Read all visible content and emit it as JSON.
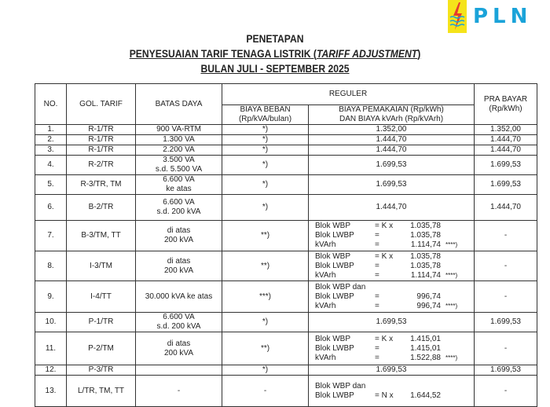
{
  "logo": {
    "text": "PLN",
    "colors": {
      "box": "#f5e31a",
      "text": "#1aa3d9",
      "bolt": "#e63b2e"
    }
  },
  "title": {
    "line1": "PENETAPAN",
    "line2_main": "PENYESUAIAN TARIF TENAGA LISTRIK (",
    "line2_italic": "TARIFF ADJUSTMENT",
    "line2_end": ")",
    "line3": "BULAN JULI - SEPTEMBER 2025"
  },
  "headers": {
    "no": "NO.",
    "gol": "GOL. TARIF",
    "batas": "BATAS DAYA",
    "reguler": "REGULER",
    "beban": "BIAYA BEBAN",
    "beban_unit": "(Rp/kVA/bulan)",
    "pemakaian": "BIAYA PEMAKAIAN (Rp/kWh)",
    "pemakaian2": "DAN BIAYA kVArh (Rp/kVArh)",
    "prabayar": "PRA BAYAR",
    "prabayar_unit": "(Rp/kWh)"
  },
  "rows": [
    {
      "no": "1.",
      "gol": "R-1/TR",
      "batas": [
        "900 VA-RTM"
      ],
      "beban": "*)",
      "pemakaian": "1.352,00",
      "pra": "1.352,00"
    },
    {
      "no": "2.",
      "gol": "R-1/TR",
      "batas": [
        "1.300 VA"
      ],
      "beban": "*)",
      "pemakaian": "1.444,70",
      "pra": "1.444,70"
    },
    {
      "no": "3.",
      "gol": "R-1/TR",
      "batas": [
        "2.200 VA"
      ],
      "beban": "*)",
      "pemakaian": "1.444,70",
      "pra": "1.444,70"
    },
    {
      "no": "4.",
      "gol": "R-2/TR",
      "batas": [
        "3.500 VA",
        "s.d. 5.500 VA"
      ],
      "beban": "*)",
      "pemakaian": "1.699,53",
      "pra": "1.699,53"
    },
    {
      "no": "5.",
      "gol": "R-3/TR, TM",
      "batas": [
        "6.600 VA",
        "ke atas"
      ],
      "beban": "*)",
      "pemakaian": "1.699,53",
      "pra": "1.699,53"
    },
    {
      "no": "6.",
      "gol": "B-2/TR",
      "batas": [
        "6.600 VA",
        "s.d. 200 kVA"
      ],
      "beban": "*)",
      "pemakaian": "1.444,70",
      "pra": "1.444,70"
    },
    {
      "no": "7.",
      "gol": "B-3/TM, TT",
      "batas": [
        "di atas",
        "200 kVA"
      ],
      "beban": "**)",
      "blok": [
        {
          "l": "Blok WBP",
          "e": "= K x",
          "v": "1.035,78",
          "n": ""
        },
        {
          "l": "Blok LWBP",
          "e": "=",
          "v": "1.035,78",
          "n": ""
        },
        {
          "l": "kVArh",
          "e": "=",
          "v": "1.114,74",
          "n": "****)"
        }
      ],
      "pra": "-"
    },
    {
      "no": "8.",
      "gol": "I-3/TM",
      "batas": [
        "di atas",
        "200 kVA"
      ],
      "beban": "**)",
      "blok": [
        {
          "l": "Blok WBP",
          "e": "= K x",
          "v": "1.035,78",
          "n": ""
        },
        {
          "l": "Blok LWBP",
          "e": "=",
          "v": "1.035,78",
          "n": ""
        },
        {
          "l": "kVArh",
          "e": "=",
          "v": "1.114,74",
          "n": "****)"
        }
      ],
      "pra": "-"
    },
    {
      "no": "9.",
      "gol": "I-4/TT",
      "batas": [
        "30.000 kVA ke atas"
      ],
      "beban": "***)",
      "blok": [
        {
          "l": "Blok WBP dan",
          "e": "",
          "v": "",
          "n": ""
        },
        {
          "l": "Blok LWBP",
          "e": "=",
          "v": "996,74",
          "n": ""
        },
        {
          "l": "kVArh",
          "e": "=",
          "v": "996,74",
          "n": "****)"
        }
      ],
      "pra": "-"
    },
    {
      "no": "10.",
      "gol": "P-1/TR",
      "batas": [
        "6.600 VA",
        "s.d. 200 kVA"
      ],
      "beban": "*)",
      "pemakaian": "1.699,53",
      "pra": "1.699,53"
    },
    {
      "no": "11.",
      "gol": "P-2/TM",
      "batas": [
        "di atas",
        "200 kVA"
      ],
      "beban": "**)",
      "blok": [
        {
          "l": "Blok WBP",
          "e": "= K x",
          "v": "1.415,01",
          "n": ""
        },
        {
          "l": "Blok LWBP",
          "e": "=",
          "v": "1.415,01",
          "n": ""
        },
        {
          "l": "kVArh",
          "e": "=",
          "v": "1.522,88",
          "n": "****)"
        }
      ],
      "pra": "-"
    },
    {
      "no": "12.",
      "gol": "P-3/TR",
      "batas": [
        ""
      ],
      "beban": "*)",
      "pemakaian": "1.699,53",
      "pra": "1.699,53"
    },
    {
      "no": "13.",
      "gol": "L/TR, TM, TT",
      "batas": [
        "-"
      ],
      "beban": "-",
      "blok": [
        {
          "l": "Blok WBP dan",
          "e": "",
          "v": "",
          "n": ""
        },
        {
          "l": "Blok LWBP",
          "e": "= N x",
          "v": "1.644,52",
          "n": ""
        }
      ],
      "pra": "-"
    }
  ]
}
